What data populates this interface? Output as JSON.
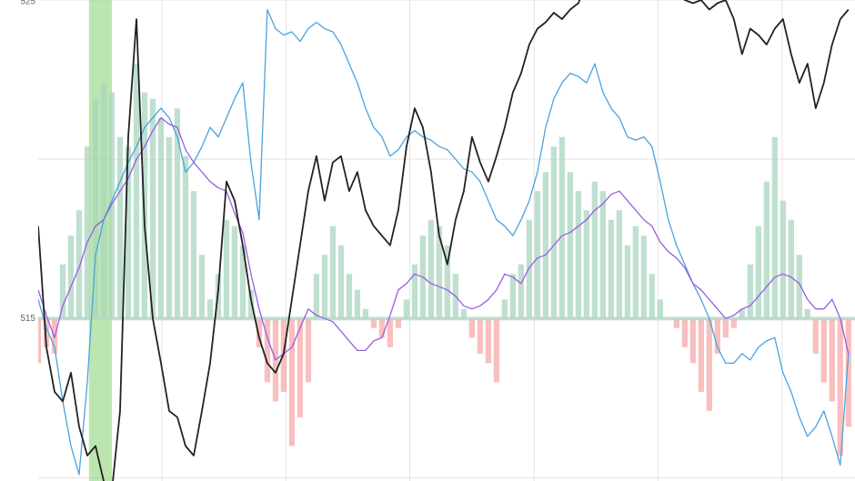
{
  "chart_data": {
    "type": "line",
    "xlim": [
      0,
      99.8
    ],
    "ylim": [
      509.9,
      525
    ],
    "yticks": [
      515,
      525
    ],
    "minor_yticks": [
      510,
      520
    ],
    "x_grid": [
      15.1,
      30.3,
      45.4,
      60.6,
      75.7,
      90.9
    ],
    "highlight": [
      6.2,
      9
    ],
    "highlight_color": "#8fd67a",
    "grid": true,
    "histogram": {
      "baseline": 515,
      "up_color": "#a9d6bf",
      "down_color": "#f5a9a9",
      "values": [
        513.6,
        514.1,
        513.9,
        516.7,
        517.6,
        518.4,
        520.4,
        521.9,
        522.4,
        522.1,
        520.7,
        520.4,
        523.0,
        522.1,
        521.9,
        521.3,
        520.7,
        521.6,
        520.1,
        519.0,
        517.0,
        515.6,
        516.4,
        518.1,
        517.9,
        517.3,
        515.9,
        514.1,
        513.0,
        512.4,
        512.7,
        511.0,
        511.9,
        513.0,
        516.4,
        517.0,
        517.9,
        517.3,
        516.4,
        515.9,
        515.3,
        514.7,
        514.4,
        514.1,
        514.7,
        515.6,
        516.7,
        517.6,
        518.1,
        517.9,
        517.3,
        516.4,
        515.3,
        514.4,
        513.9,
        513.6,
        513.0,
        515.6,
        516.4,
        516.7,
        518.1,
        519.0,
        519.6,
        520.4,
        520.7,
        519.6,
        519.0,
        518.4,
        519.3,
        519.0,
        518.1,
        518.4,
        517.3,
        517.9,
        517.6,
        516.4,
        515.6,
        515.0,
        514.7,
        514.1,
        513.6,
        512.7,
        512.1,
        513.9,
        514.4,
        514.7,
        515.3,
        516.7,
        517.9,
        519.3,
        520.7,
        518.7,
        518.1,
        517.0,
        515.3,
        513.9,
        513.0,
        512.4,
        510.7,
        511.6
      ]
    },
    "series": [
      {
        "color": "#4aa3df",
        "values": [
          515.6,
          514.7,
          514.1,
          512.4,
          511.0,
          510.1,
          513.0,
          517.0,
          518.1,
          518.7,
          519.3,
          519.9,
          520.4,
          521.0,
          521.3,
          521.6,
          521.3,
          520.7,
          519.6,
          519.9,
          520.4,
          521.0,
          520.7,
          521.3,
          521.9,
          522.4,
          519.9,
          518.1,
          524.7,
          524.1,
          523.9,
          524.0,
          523.7,
          524.1,
          524.3,
          524.1,
          524.0,
          523.6,
          523.0,
          522.4,
          521.6,
          521.0,
          520.7,
          520.1,
          520.3,
          520.7,
          520.9,
          520.7,
          520.6,
          520.4,
          520.3,
          520.0,
          519.7,
          519.6,
          519.3,
          518.7,
          518.1,
          517.9,
          517.6,
          518.1,
          518.7,
          519.6,
          521.0,
          521.9,
          522.4,
          522.7,
          522.6,
          522.4,
          523.0,
          522.1,
          521.6,
          521.3,
          520.7,
          520.6,
          520.7,
          520.4,
          519.3,
          518.1,
          517.3,
          516.7,
          516.1,
          515.6,
          515.0,
          514.1,
          513.6,
          513.6,
          513.9,
          513.7,
          514.1,
          514.3,
          514.4,
          513.3,
          512.7,
          511.9,
          511.3,
          511.6,
          512.1,
          511.3,
          510.4,
          513.9
        ]
      },
      {
        "color": "#9b5de5",
        "values": [
          515.9,
          515.1,
          514.4,
          515.4,
          516.0,
          516.6,
          517.4,
          517.9,
          518.1,
          518.6,
          519.0,
          519.4,
          520.0,
          520.4,
          520.9,
          521.3,
          521.1,
          521.0,
          520.3,
          519.9,
          519.6,
          519.3,
          519.1,
          519.0,
          518.3,
          517.7,
          516.4,
          515.3,
          514.4,
          513.7,
          513.9,
          514.1,
          514.7,
          515.3,
          515.1,
          515.0,
          514.9,
          514.6,
          514.3,
          514.0,
          514.0,
          514.3,
          514.4,
          515.1,
          515.9,
          516.1,
          516.4,
          516.3,
          516.1,
          516.0,
          515.9,
          515.7,
          515.4,
          515.3,
          515.4,
          515.6,
          515.9,
          516.4,
          516.3,
          516.1,
          516.6,
          516.9,
          517.0,
          517.3,
          517.6,
          517.7,
          517.9,
          518.1,
          518.4,
          518.6,
          518.9,
          519.0,
          518.7,
          518.4,
          518.1,
          517.9,
          517.4,
          517.1,
          516.9,
          516.6,
          516.1,
          515.9,
          515.6,
          515.3,
          515.0,
          515.1,
          515.3,
          515.4,
          515.7,
          516.0,
          516.3,
          516.4,
          516.3,
          516.1,
          515.6,
          515.3,
          515.3,
          515.6,
          515.0,
          513.9
        ]
      },
      {
        "color": "#222222",
        "values": [
          517.9,
          514.1,
          512.7,
          512.4,
          513.3,
          511.6,
          510.7,
          511.0,
          509.9,
          509.6,
          512.1,
          520.7,
          524.4,
          517.9,
          515.0,
          513.6,
          512.1,
          511.9,
          511.0,
          510.7,
          512.1,
          513.6,
          515.9,
          519.3,
          518.7,
          517.3,
          515.6,
          514.4,
          513.6,
          513.3,
          513.9,
          515.6,
          517.3,
          519.0,
          520.1,
          518.7,
          519.9,
          520.1,
          519.0,
          519.6,
          518.4,
          517.9,
          517.6,
          517.3,
          518.4,
          520.4,
          521.6,
          521.0,
          519.6,
          517.6,
          516.7,
          518.1,
          519.0,
          520.7,
          519.9,
          519.3,
          520.1,
          521.0,
          522.1,
          522.7,
          523.6,
          524.1,
          524.3,
          524.6,
          524.4,
          524.7,
          524.9,
          525.6,
          525.6,
          525.6,
          525.6,
          525.6,
          525.6,
          525.6,
          525.6,
          525.6,
          525.6,
          525.6,
          525.6,
          525.0,
          524.9,
          525.0,
          524.7,
          524.9,
          525.0,
          524.4,
          523.3,
          524.1,
          523.9,
          523.6,
          524.1,
          524.4,
          523.3,
          522.4,
          523.0,
          521.6,
          522.4,
          523.6,
          524.4,
          524.7
        ]
      }
    ]
  }
}
